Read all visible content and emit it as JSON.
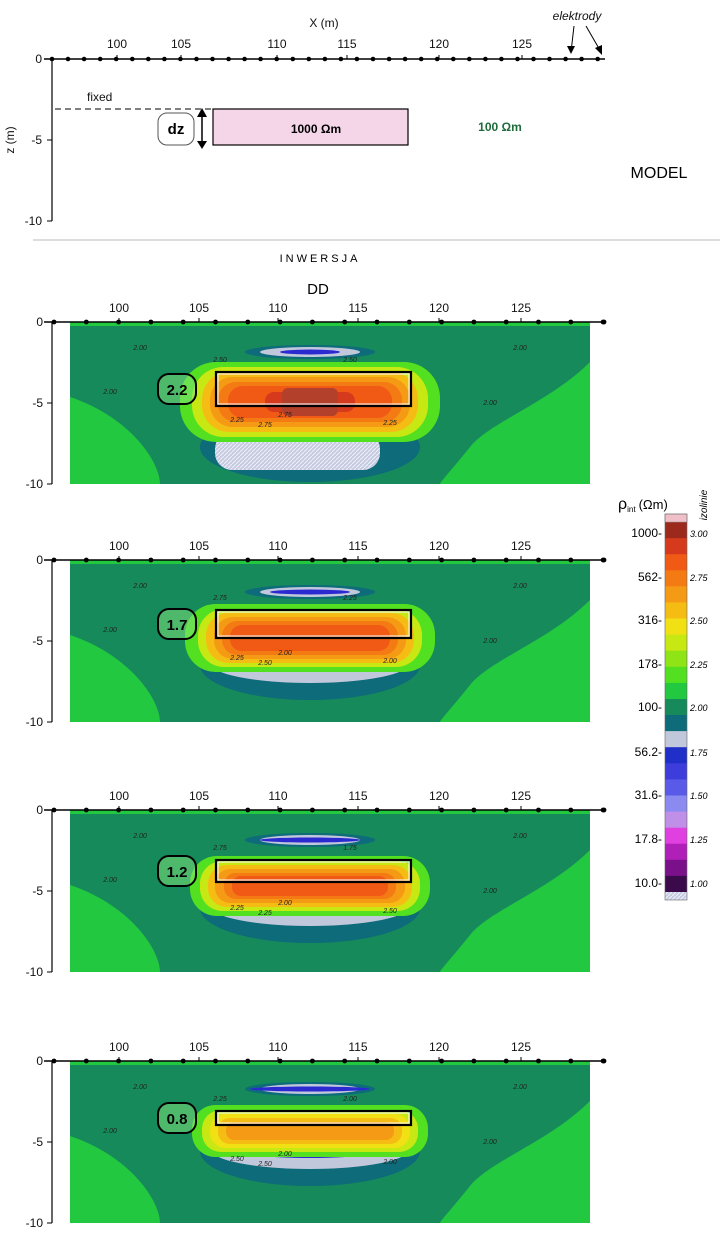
{
  "model": {
    "label": "MODEL",
    "x_axis_label": "X (m)",
    "z_axis_label": "z (m)",
    "x_ticks": [
      "100",
      "105",
      "110",
      "115",
      "120",
      "125"
    ],
    "z_ticks": [
      "0",
      "-5",
      "-10"
    ],
    "electrodes_label": "elektrody",
    "fixed_label": "fixed",
    "dz_label": "dz",
    "block_label": "1000 Ωm",
    "background_label": "100 Ωm",
    "block_color": "#f5d6e8",
    "background_label_color": "#1f6b3a"
  },
  "inversion_title": "INWERSJA",
  "array_label": "DD",
  "panels": [
    {
      "dz": "2.2",
      "depth_ticks": [
        "0",
        "-5",
        "-10"
      ],
      "x_ticks": [
        "100",
        "105",
        "110",
        "115",
        "120",
        "125"
      ],
      "isolines": [
        "2.00",
        "2.00",
        "2.00",
        "2.00",
        "2.25",
        "2.50",
        "2.75",
        "2.25",
        "2.50",
        "2.75"
      ]
    },
    {
      "dz": "1.7",
      "depth_ticks": [
        "0",
        "-5",
        "-10"
      ],
      "x_ticks": [
        "100",
        "105",
        "110",
        "115",
        "120",
        "125"
      ],
      "isolines": [
        "2.00",
        "2.00",
        "2.00",
        "2.00",
        "2.25",
        "2.75",
        "2.50",
        "2.00",
        "2.25",
        "2.00"
      ]
    },
    {
      "dz": "1.2",
      "depth_ticks": [
        "0",
        "-5",
        "-10"
      ],
      "x_ticks": [
        "100",
        "105",
        "110",
        "115",
        "120",
        "125"
      ],
      "isolines": [
        "2.00",
        "2.00",
        "2.00",
        "2.00",
        "2.25",
        "2.75",
        "2.25",
        "2.50",
        "1.75",
        "2.00"
      ]
    },
    {
      "dz": "0.8",
      "depth_ticks": [
        "0",
        "-5",
        "-10"
      ],
      "x_ticks": [
        "100",
        "105",
        "110",
        "115",
        "120",
        "125"
      ],
      "isolines": [
        "2.00",
        "2.00",
        "2.00",
        "2.00",
        "2.50",
        "2.25",
        "2.50",
        "2.00",
        "2.00",
        "2.00"
      ]
    }
  ],
  "legend": {
    "title_main": "ρ",
    "title_sub": "int",
    "title_unit": "(Ωm)",
    "isoline_header": "izolinie",
    "resistivity_ticks": [
      "1000-",
      "562-",
      "316-",
      "178-",
      "100-",
      "56.2-",
      "31.6-",
      "17.8-",
      "10.0-"
    ],
    "log_ticks": [
      "3.00",
      "2.75",
      "2.50",
      "2.25",
      "2.00",
      "1.75",
      "1.50",
      "1.25",
      "1.00"
    ],
    "colors": [
      "#9c2a1c",
      "#d63a1c",
      "#f05a14",
      "#f47a14",
      "#f59a14",
      "#f5bd14",
      "#f0e014",
      "#c8e814",
      "#8ee414",
      "#52e020",
      "#22c840",
      "#168a5a",
      "#0d6b7a",
      "#c2c8dc",
      "#1f2fc8",
      "#3d3ddc",
      "#5a5ae8",
      "#8a8af0",
      "#c090e8",
      "#e040e0",
      "#b020b8",
      "#7a108a",
      "#3a0a4a"
    ]
  }
}
